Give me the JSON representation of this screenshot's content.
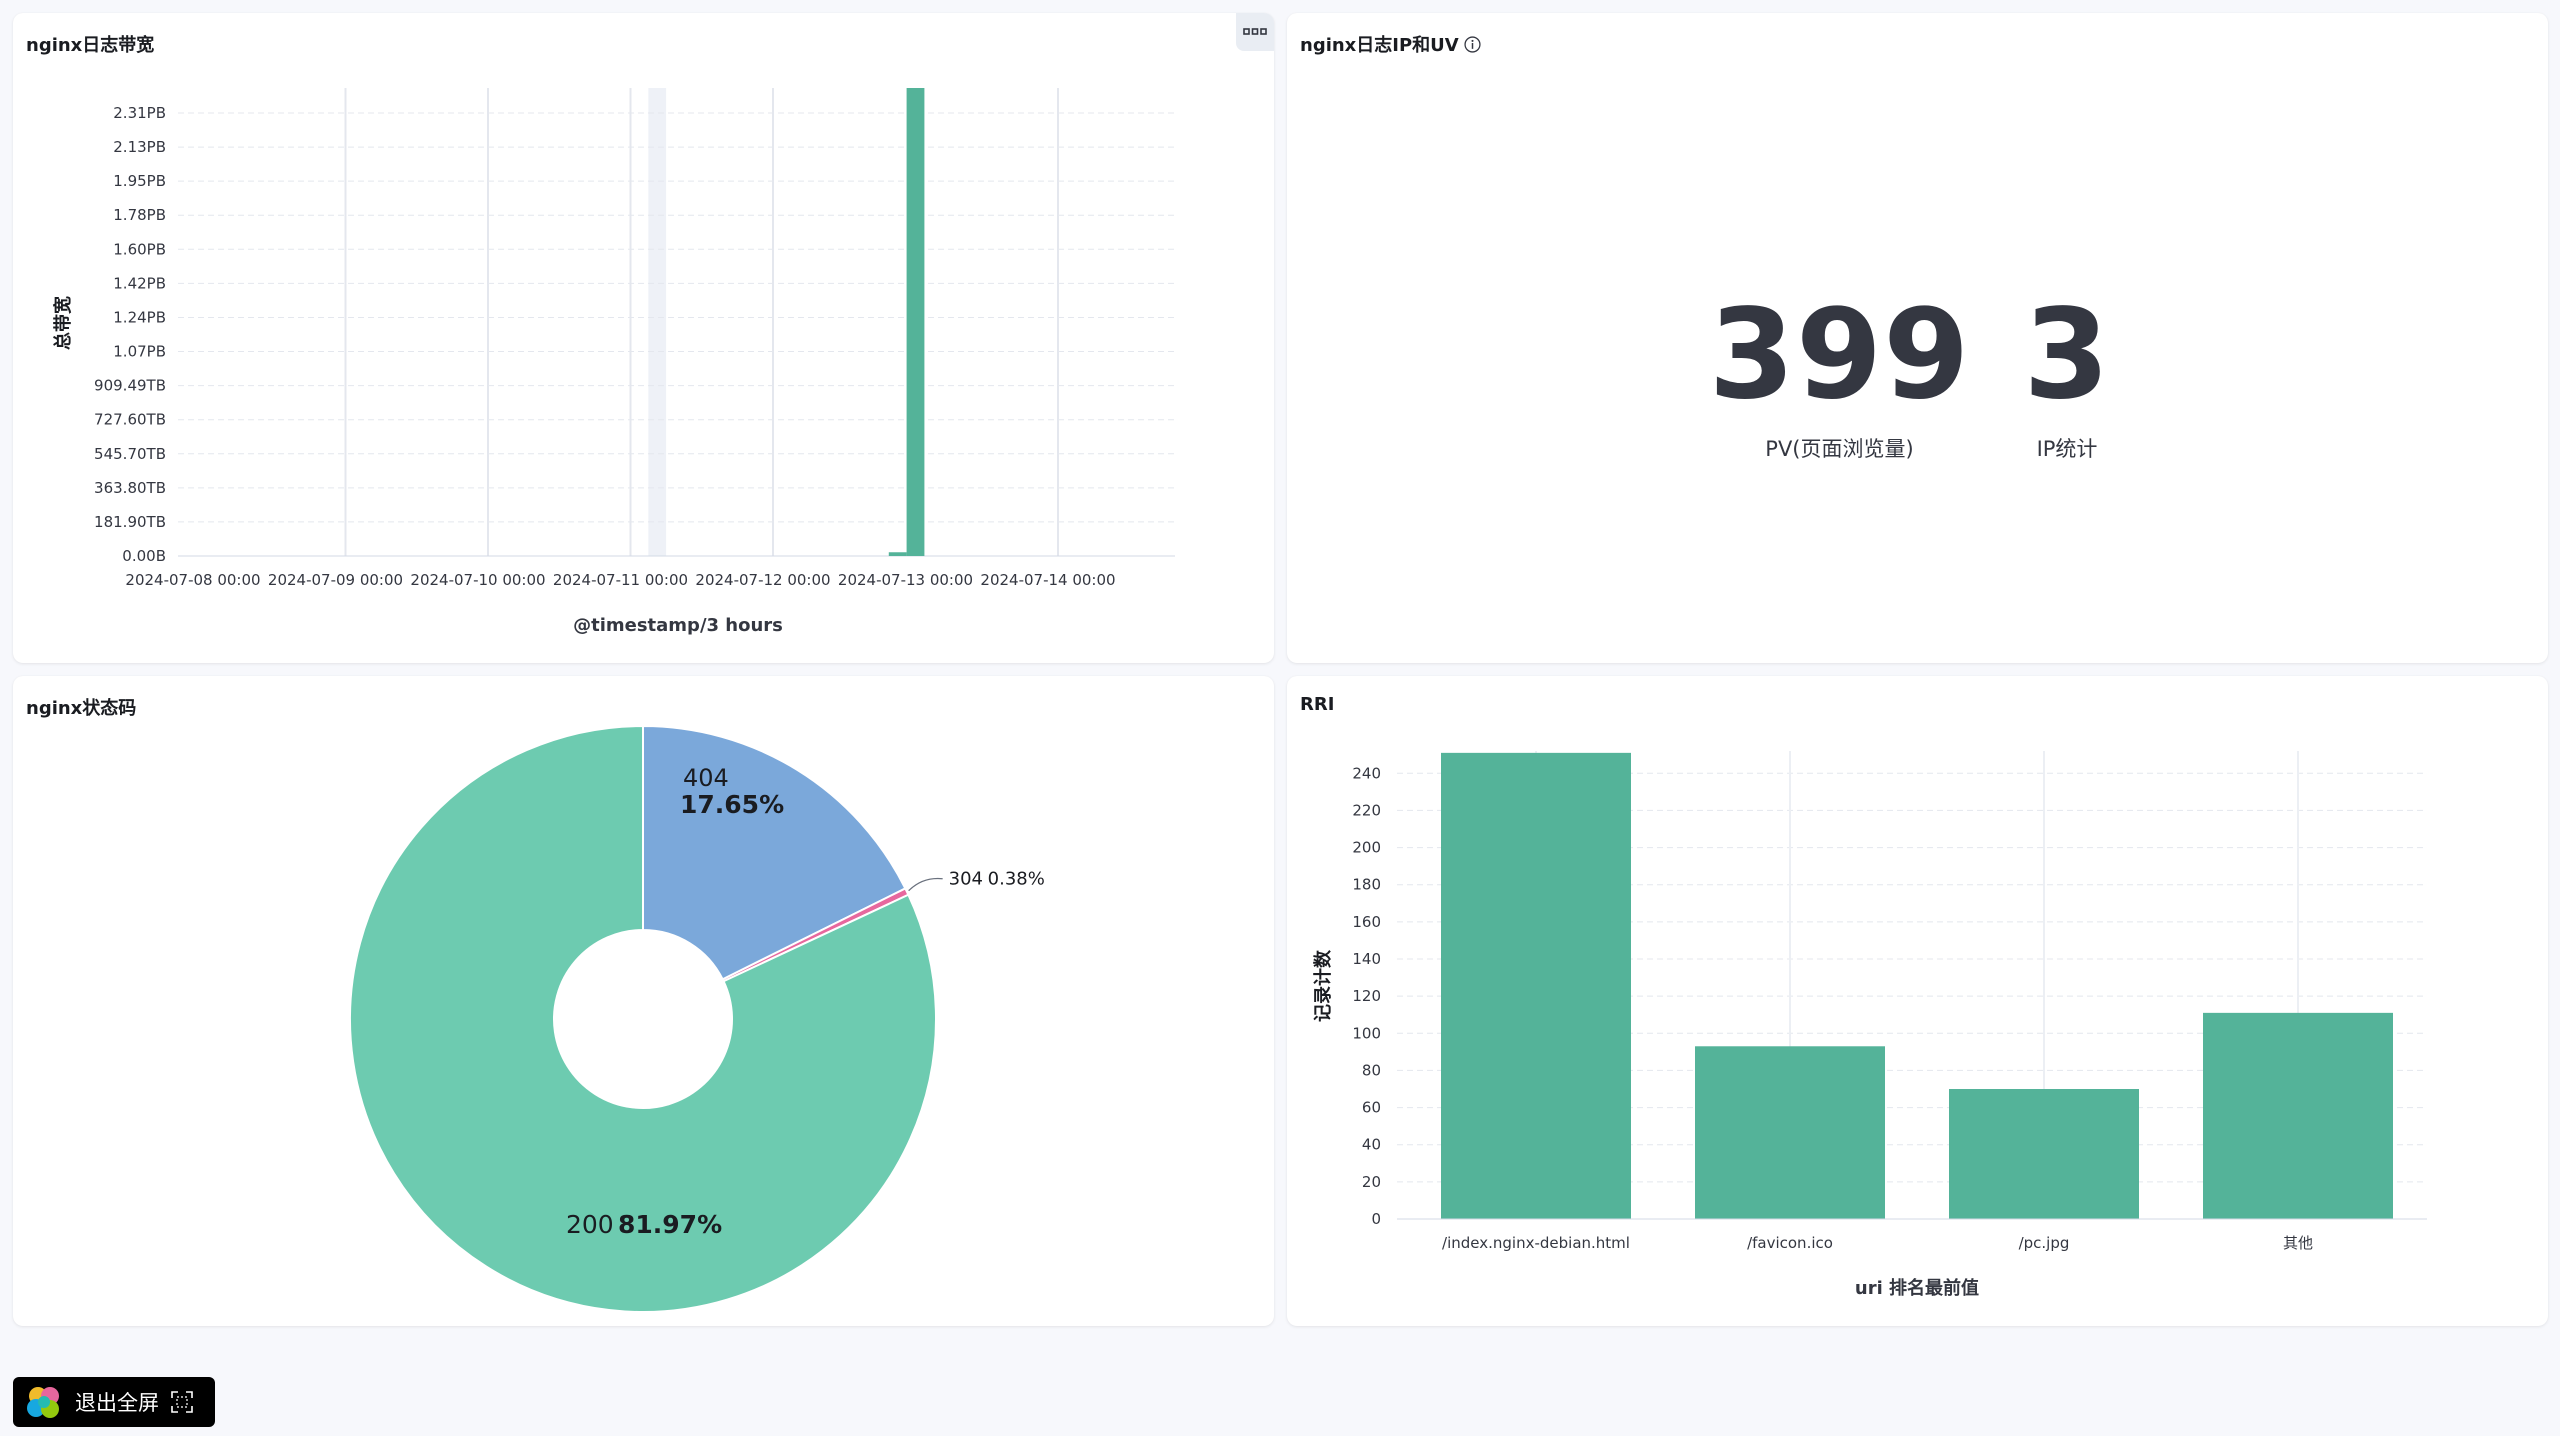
{
  "panels": {
    "bandwidth": {
      "title": "nginx日志带宽",
      "menu_icon": "ellipsis-icon",
      "ylabel": "总带宽",
      "xlabel": "@timestamp/3 hours"
    },
    "ip_uv": {
      "title": "nginx日志IP和UV",
      "info_icon": "info-icon",
      "metrics": [
        {
          "value": "399",
          "label": "PV(页面浏览量)"
        },
        {
          "value": "3",
          "label": "IP统计"
        }
      ]
    },
    "status": {
      "title": "nginx状态码"
    },
    "rri": {
      "title": "RRI",
      "ylabel": "记录计数",
      "xlabel": "uri 排名最前值"
    }
  },
  "exit_fullscreen": {
    "label": "退出全屏",
    "icon": "fullscreen-exit-icon",
    "logo": "elastic-logo-icon"
  },
  "chart_data": [
    {
      "type": "bar",
      "title": "nginx日志带宽",
      "xlabel": "@timestamp/3 hours",
      "ylabel": "总带宽",
      "x_ticks": [
        "2024-07-08 00:00",
        "2024-07-09 00:00",
        "2024-07-10 00:00",
        "2024-07-11 00:00",
        "2024-07-12 00:00",
        "2024-07-13 00:00",
        "2024-07-14 00:00"
      ],
      "y_ticks": [
        "0.00B",
        "181.90TB",
        "363.80TB",
        "545.70TB",
        "727.60TB",
        "909.49TB",
        "1.07PB",
        "1.24PB",
        "1.42PB",
        "1.60PB",
        "1.78PB",
        "1.95PB",
        "2.13PB",
        "2.31PB"
      ],
      "y_unit": "PB",
      "ylim": [
        0,
        2.5
      ],
      "highlight_interval": [
        "2024-07-11 03:00",
        "2024-07-11 06:00"
      ],
      "bars": [
        {
          "x": "2024-07-12 21:00",
          "value": 0.02
        },
        {
          "x": "2024-07-13 00:00",
          "value": 2.5
        }
      ],
      "color": "#54b399",
      "grid": true
    },
    {
      "type": "pie",
      "title": "nginx状态码",
      "donut": true,
      "slices": [
        {
          "label": "404",
          "percent": 17.65,
          "pct_text": "17.65%",
          "color": "#7ba8da"
        },
        {
          "label": "304",
          "percent": 0.38,
          "pct_text": "0.38%",
          "color": "#e7689e"
        },
        {
          "label": "200",
          "percent": 81.97,
          "pct_text": "81.97%",
          "color": "#6dcbb0"
        }
      ]
    },
    {
      "type": "bar",
      "title": "RRI",
      "xlabel": "uri 排名最前值",
      "ylabel": "记录计数",
      "categories": [
        "/index.nginx-debian.html",
        "/favicon.ico",
        "/pc.jpg",
        "其他"
      ],
      "values": [
        251,
        93,
        70,
        111
      ],
      "ylim": [
        0,
        252
      ],
      "y_ticks": [
        0,
        20,
        40,
        60,
        80,
        100,
        120,
        140,
        160,
        180,
        200,
        220,
        240
      ],
      "color": "#54b399",
      "grid": true
    }
  ]
}
